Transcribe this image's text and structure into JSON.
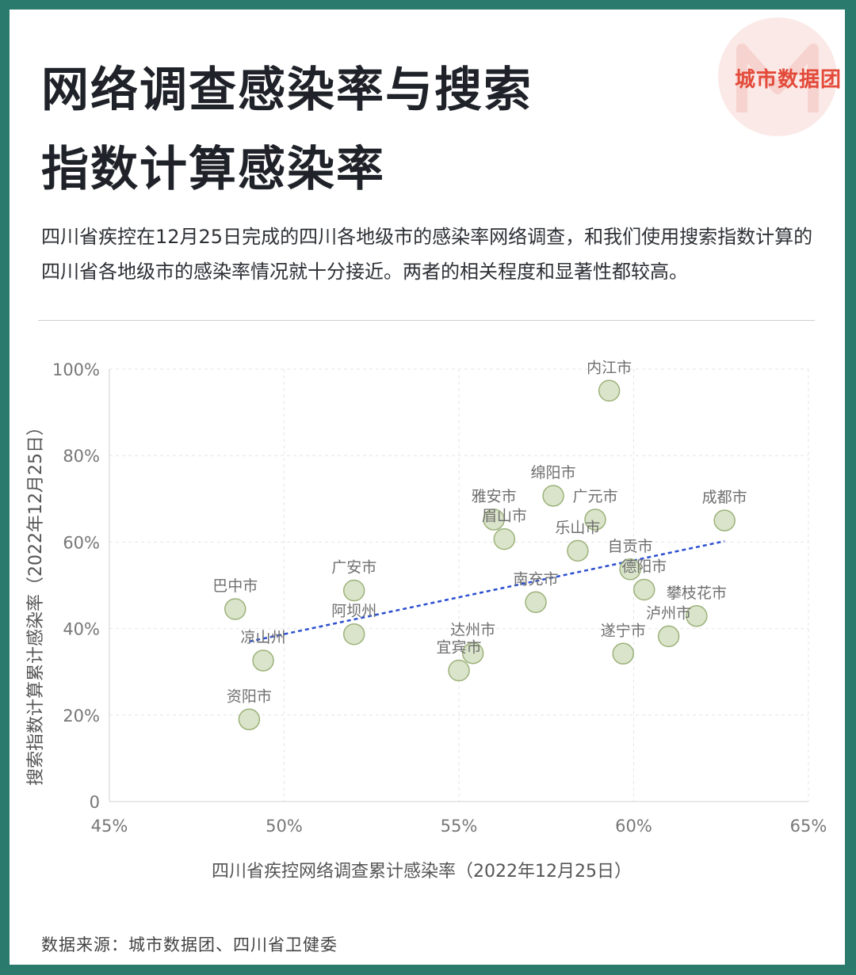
{
  "brand": {
    "name": "城市数据团"
  },
  "header": {
    "title_line1": "网络调查感染率与搜索",
    "title_line2": "指数计算感染率",
    "subtitle": "四川省疾控在12月25日完成的四川各地级市的感染率网络调查，和我们使用搜索指数计算的四川省各地级市的感染率情况就十分接近。两者的相关程度和显著性都较高。"
  },
  "footer": {
    "source": "数据来源：城市数据团、四川省卫健委"
  },
  "colors": {
    "frame": "#2b7a6e",
    "point_fill": "#d3dfc1",
    "point_stroke": "#9cb27a",
    "trend": "#2b4fcf",
    "brand": "#e34a3a"
  },
  "chart_data": {
    "type": "scatter",
    "xlabel": "四川省疾控网络调查累计感染率（2022年12月25日）",
    "ylabel": "搜索指数计算累计感染率（2022年12月25日）",
    "xlim": [
      45,
      65
    ],
    "ylim": [
      0,
      100
    ],
    "xticks": [
      "45%",
      "50%",
      "55%",
      "60%",
      "65%"
    ],
    "yticks": [
      "0",
      "20%",
      "40%",
      "60%",
      "80%",
      "100%"
    ],
    "grid": true,
    "points": [
      {
        "name": "内江市",
        "x": 59.3,
        "y": 95
      },
      {
        "name": "绵阳市",
        "x": 57.7,
        "y": 70.7
      },
      {
        "name": "雅安市",
        "x": 56.0,
        "y": 65.2
      },
      {
        "name": "广元市",
        "x": 58.9,
        "y": 65.2
      },
      {
        "name": "成都市",
        "x": 62.6,
        "y": 65.0
      },
      {
        "name": "眉山市",
        "x": 56.3,
        "y": 60.7
      },
      {
        "name": "乐山市",
        "x": 58.4,
        "y": 58.0
      },
      {
        "name": "自贡市",
        "x": 59.9,
        "y": 53.7
      },
      {
        "name": "德阳市",
        "x": 60.3,
        "y": 49.0
      },
      {
        "name": "广安市",
        "x": 52.0,
        "y": 48.8
      },
      {
        "name": "南充市",
        "x": 57.2,
        "y": 46.1
      },
      {
        "name": "巴中市",
        "x": 48.6,
        "y": 44.5
      },
      {
        "name": "攀枝花市",
        "x": 61.8,
        "y": 42.9
      },
      {
        "name": "阿坝州",
        "x": 52.0,
        "y": 38.7
      },
      {
        "name": "泸州市",
        "x": 61.0,
        "y": 38.2
      },
      {
        "name": "达州市",
        "x": 55.4,
        "y": 34.3
      },
      {
        "name": "遂宁市",
        "x": 59.7,
        "y": 34.2
      },
      {
        "name": "凉山州",
        "x": 49.4,
        "y": 32.6
      },
      {
        "name": "宜宾市",
        "x": 55.0,
        "y": 30.3
      },
      {
        "name": "资阳市",
        "x": 49.0,
        "y": 19.0
      }
    ],
    "trendline": {
      "x": [
        49.0,
        62.6
      ],
      "y": [
        37.0,
        60.2
      ]
    }
  }
}
